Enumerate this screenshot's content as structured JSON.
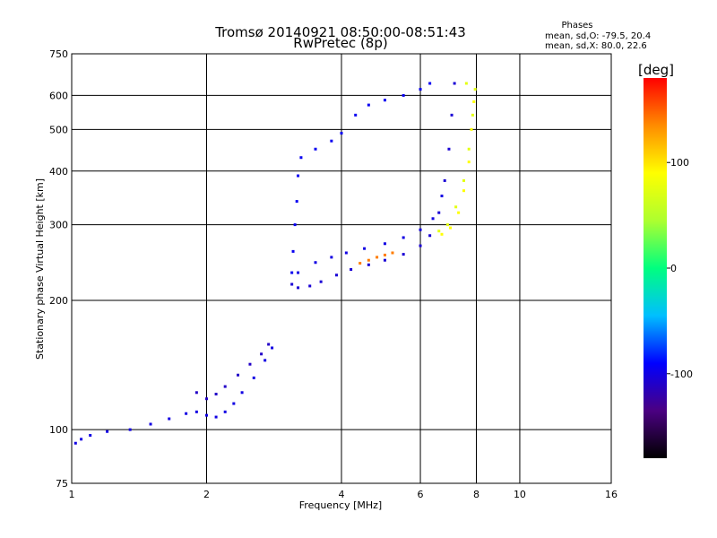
{
  "chart_data": {
    "type": "scatter",
    "title": "Tromsø 20140921 08:50:00-08:51:43",
    "subtitle": "RwPretec (8p)",
    "xlabel": "Frequency [MHz]",
    "ylabel": "Stationary phase Virtual Height [km]",
    "x_scale": "log",
    "y_scale": "log",
    "xlim": [
      1,
      16
    ],
    "ylim": [
      75,
      750
    ],
    "x_ticks": [
      1,
      2,
      4,
      6,
      8,
      10,
      16
    ],
    "y_ticks": [
      75,
      100,
      200,
      300,
      400,
      500,
      600,
      750
    ],
    "grid": true,
    "stats": {
      "heading": "Phases",
      "o_mode": "mean, sd,O: -79.5, 20.4",
      "x_mode": "mean, sd,X:  80.0, 22.6"
    },
    "colorbar": {
      "label": "[deg]",
      "ticks": [
        100,
        0,
        -100
      ],
      "range": [
        -180,
        180
      ],
      "colors": [
        "#000000",
        "#4b0082",
        "#0000ff",
        "#00bfff",
        "#00ff7f",
        "#adff2f",
        "#ffff00",
        "#ff8c00",
        "#ff0000"
      ]
    },
    "traces": [
      {
        "name": "",
        "phase": -100,
        "points": [
          [
            1.02,
            93
          ],
          [
            1.05,
            95
          ],
          [
            1.1,
            97
          ],
          [
            1.2,
            99
          ],
          [
            1.35,
            100
          ],
          [
            1.5,
            103
          ],
          [
            1.65,
            106
          ],
          [
            1.8,
            109
          ],
          [
            1.9,
            110
          ],
          [
            2.0,
            108
          ],
          [
            2.1,
            107
          ],
          [
            2.2,
            110
          ],
          [
            2.3,
            115
          ],
          [
            2.4,
            122
          ],
          [
            2.55,
            132
          ],
          [
            2.7,
            145
          ],
          [
            2.8,
            155
          ]
        ]
      },
      {
        "name": "",
        "phase": -110,
        "points": [
          [
            1.9,
            122
          ],
          [
            2.0,
            118
          ],
          [
            2.1,
            121
          ],
          [
            2.2,
            126
          ],
          [
            2.35,
            134
          ],
          [
            2.5,
            142
          ],
          [
            2.65,
            150
          ],
          [
            2.75,
            158
          ]
        ]
      },
      {
        "name": "",
        "phase": -105,
        "points": [
          [
            3.1,
            218
          ],
          [
            3.2,
            214
          ],
          [
            3.4,
            216
          ],
          [
            3.6,
            221
          ],
          [
            3.9,
            229
          ],
          [
            4.2,
            236
          ],
          [
            4.6,
            242
          ],
          [
            5.0,
            248
          ],
          [
            5.5,
            256
          ],
          [
            6.0,
            268
          ],
          [
            6.3,
            283
          ],
          [
            6.6,
            320
          ],
          [
            6.8,
            380
          ],
          [
            6.95,
            450
          ],
          [
            7.05,
            540
          ],
          [
            7.15,
            640
          ]
        ]
      },
      {
        "name": "",
        "phase": -100,
        "points": [
          [
            3.2,
            232
          ],
          [
            3.5,
            245
          ],
          [
            3.8,
            252
          ],
          [
            4.1,
            258
          ],
          [
            4.5,
            264
          ],
          [
            5.0,
            271
          ],
          [
            5.5,
            280
          ],
          [
            6.0,
            292
          ],
          [
            6.4,
            310
          ],
          [
            6.7,
            350
          ]
        ]
      },
      {
        "name": "",
        "phase": -95,
        "points": [
          [
            3.1,
            232
          ],
          [
            3.12,
            260
          ],
          [
            3.15,
            300
          ],
          [
            3.18,
            340
          ],
          [
            3.2,
            390
          ],
          [
            3.25,
            430
          ],
          [
            3.5,
            450
          ],
          [
            3.8,
            470
          ],
          [
            4.0,
            490
          ],
          [
            4.3,
            540
          ],
          [
            4.6,
            570
          ],
          [
            5.0,
            585
          ],
          [
            5.5,
            600
          ],
          [
            6.0,
            620
          ],
          [
            6.3,
            640
          ]
        ]
      },
      {
        "name": "",
        "phase": 75,
        "points": [
          [
            6.6,
            290
          ],
          [
            6.9,
            300
          ],
          [
            7.2,
            330
          ],
          [
            7.5,
            380
          ],
          [
            7.7,
            450
          ],
          [
            7.85,
            540
          ],
          [
            7.95,
            620
          ],
          [
            7.6,
            640
          ]
        ]
      },
      {
        "name": "",
        "phase": 90,
        "points": [
          [
            6.7,
            285
          ],
          [
            7.0,
            295
          ],
          [
            7.3,
            320
          ],
          [
            7.5,
            360
          ],
          [
            7.7,
            420
          ],
          [
            7.8,
            500
          ],
          [
            7.9,
            580
          ]
        ]
      },
      {
        "name": "",
        "phase": 140,
        "points": [
          [
            4.4,
            244
          ],
          [
            4.6,
            248
          ],
          [
            4.8,
            252
          ],
          [
            5.0,
            255
          ],
          [
            5.2,
            258
          ]
        ]
      }
    ]
  }
}
